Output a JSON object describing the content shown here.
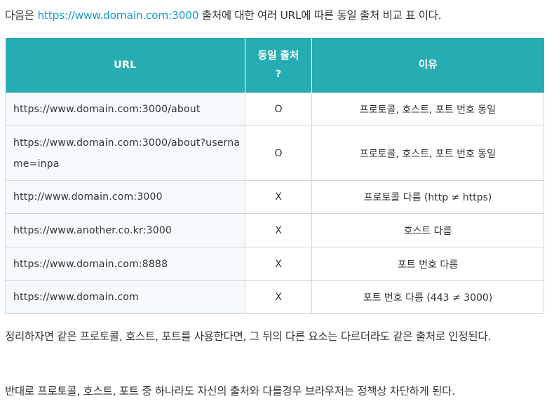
{
  "intro": {
    "link": "https://www.domain.com:3000",
    "suffix": " 출처에 대한 여러 URL에 따른 동일 출처 비교 표 이다."
  },
  "table": {
    "headers": [
      "URL",
      "동일 출처 ?",
      "이유"
    ],
    "rows": [
      {
        "url": "https://www.domain.com:3000/about",
        "same": "O",
        "reason": "프로토콜, 호스트, 포트 번호 동일"
      },
      {
        "url": "https://www.domain.com:3000/about?username=inpa",
        "same": "O",
        "reason": "프로토콜, 호스트, 포트 번호 동일"
      },
      {
        "url": "http://www.domain.com:3000",
        "same": "X",
        "reason": "프로토콜 다름 (http ≠ https)"
      },
      {
        "url": "https://www.another.co.kr:3000",
        "same": "X",
        "reason": "호스트 다름"
      },
      {
        "url": "https://www.domain.com:8888",
        "same": "X",
        "reason": "포트 번호 다름"
      },
      {
        "url": "https://www.domain.com",
        "same": "X",
        "reason": "포트 번호 다름 (443 ≠ 3000)"
      }
    ]
  },
  "paragraphs": [
    "정리하자면 같은 프로토콜, 호스트, 포트를 사용한다면, 그 뒤의 다른 요소는 다르더라도 같은 출처로 인정된다.",
    "반대로 프로토콜, 호스트, 포트 중 하나라도 자신의 출처와 다를경우 브라우저는 정책상 차단하게 된다."
  ],
  "colors": {
    "header_bg": "#26adb3",
    "link": "#1a9bc2",
    "same_o": "#1a9bc2",
    "same_x": "#e23838",
    "url_cell_bg": "#f4f9fd"
  }
}
